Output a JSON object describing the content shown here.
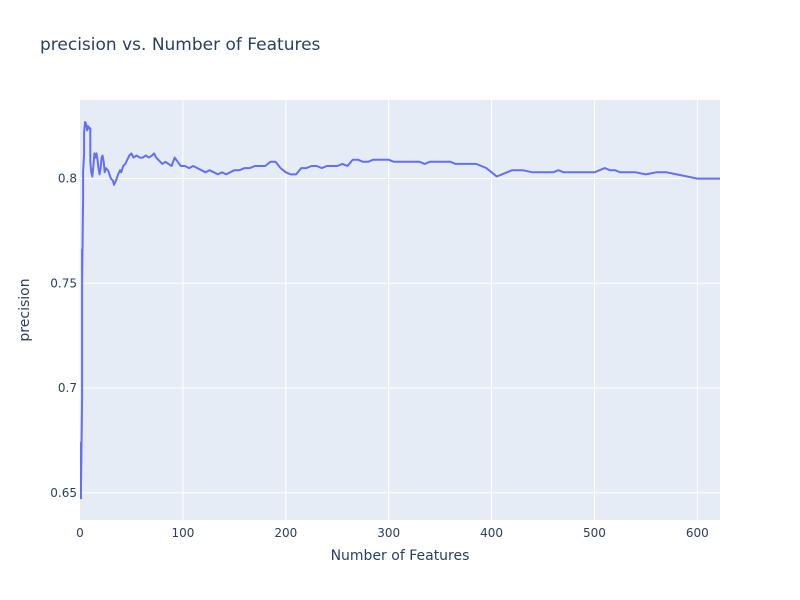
{
  "chart_data": {
    "type": "line",
    "title": "precision vs. Number of Features",
    "xlabel": "Number of Features",
    "ylabel": "precision",
    "xlim": [
      0,
      622
    ],
    "ylim": [
      0.637,
      0.8375
    ],
    "x_ticks": [
      0,
      100,
      200,
      300,
      400,
      500,
      600
    ],
    "x_tick_labels": [
      "0",
      "100",
      "200",
      "300",
      "400",
      "500",
      "600"
    ],
    "y_ticks": [
      0.65,
      0.7,
      0.75,
      0.8
    ],
    "y_tick_labels": [
      "0.65",
      "0.7",
      "0.75",
      "0.8"
    ],
    "grid": true,
    "plot_background": "#e5ecf6",
    "series": [
      {
        "color": "#636efa",
        "points": [
          [
            1,
            0.647
          ],
          [
            1,
            0.674
          ],
          [
            1,
            0.653
          ],
          [
            2,
            0.695
          ],
          [
            2,
            0.735
          ],
          [
            2,
            0.72
          ],
          [
            2,
            0.766
          ],
          [
            2,
            0.75
          ],
          [
            3,
            0.79
          ],
          [
            3,
            0.803
          ],
          [
            4,
            0.812
          ],
          [
            4,
            0.822
          ],
          [
            5,
            0.827
          ],
          [
            6,
            0.826
          ],
          [
            7,
            0.823
          ],
          [
            8,
            0.825
          ],
          [
            9,
            0.824
          ],
          [
            10,
            0.824
          ],
          [
            10,
            0.808
          ],
          [
            11,
            0.803
          ],
          [
            12,
            0.801
          ],
          [
            13,
            0.806
          ],
          [
            14,
            0.812
          ],
          [
            15,
            0.81
          ],
          [
            16,
            0.812
          ],
          [
            17,
            0.809
          ],
          [
            18,
            0.805
          ],
          [
            19,
            0.802
          ],
          [
            20,
            0.805
          ],
          [
            21,
            0.81
          ],
          [
            22,
            0.811
          ],
          [
            23,
            0.808
          ],
          [
            24,
            0.803
          ],
          [
            25,
            0.805
          ],
          [
            27,
            0.804
          ],
          [
            28,
            0.803
          ],
          [
            30,
            0.8
          ],
          [
            32,
            0.799
          ],
          [
            33,
            0.797
          ],
          [
            35,
            0.799
          ],
          [
            37,
            0.802
          ],
          [
            39,
            0.804
          ],
          [
            40,
            0.803
          ],
          [
            42,
            0.806
          ],
          [
            44,
            0.807
          ],
          [
            46,
            0.809
          ],
          [
            48,
            0.811
          ],
          [
            50,
            0.812
          ],
          [
            52,
            0.81
          ],
          [
            55,
            0.811
          ],
          [
            58,
            0.81
          ],
          [
            61,
            0.81
          ],
          [
            64,
            0.811
          ],
          [
            67,
            0.81
          ],
          [
            70,
            0.811
          ],
          [
            72,
            0.812
          ],
          [
            74,
            0.81
          ],
          [
            76,
            0.809
          ],
          [
            78,
            0.808
          ],
          [
            80,
            0.807
          ],
          [
            83,
            0.808
          ],
          [
            86,
            0.807
          ],
          [
            89,
            0.806
          ],
          [
            92,
            0.81
          ],
          [
            95,
            0.808
          ],
          [
            98,
            0.806
          ],
          [
            102,
            0.806
          ],
          [
            106,
            0.805
          ],
          [
            110,
            0.806
          ],
          [
            114,
            0.805
          ],
          [
            118,
            0.804
          ],
          [
            122,
            0.803
          ],
          [
            126,
            0.804
          ],
          [
            130,
            0.803
          ],
          [
            134,
            0.802
          ],
          [
            138,
            0.803
          ],
          [
            142,
            0.802
          ],
          [
            146,
            0.803
          ],
          [
            150,
            0.804
          ],
          [
            155,
            0.804
          ],
          [
            160,
            0.805
          ],
          [
            165,
            0.805
          ],
          [
            170,
            0.806
          ],
          [
            175,
            0.806
          ],
          [
            180,
            0.806
          ],
          [
            185,
            0.808
          ],
          [
            190,
            0.808
          ],
          [
            195,
            0.805
          ],
          [
            200,
            0.803
          ],
          [
            205,
            0.802
          ],
          [
            210,
            0.802
          ],
          [
            215,
            0.805
          ],
          [
            220,
            0.805
          ],
          [
            225,
            0.806
          ],
          [
            230,
            0.806
          ],
          [
            235,
            0.805
          ],
          [
            240,
            0.806
          ],
          [
            245,
            0.806
          ],
          [
            250,
            0.806
          ],
          [
            255,
            0.807
          ],
          [
            260,
            0.806
          ],
          [
            265,
            0.809
          ],
          [
            270,
            0.809
          ],
          [
            275,
            0.808
          ],
          [
            280,
            0.808
          ],
          [
            285,
            0.809
          ],
          [
            290,
            0.809
          ],
          [
            295,
            0.809
          ],
          [
            300,
            0.809
          ],
          [
            305,
            0.808
          ],
          [
            310,
            0.808
          ],
          [
            320,
            0.808
          ],
          [
            330,
            0.808
          ],
          [
            335,
            0.807
          ],
          [
            340,
            0.808
          ],
          [
            350,
            0.808
          ],
          [
            360,
            0.808
          ],
          [
            365,
            0.807
          ],
          [
            370,
            0.807
          ],
          [
            380,
            0.807
          ],
          [
            385,
            0.807
          ],
          [
            390,
            0.806
          ],
          [
            395,
            0.805
          ],
          [
            400,
            0.803
          ],
          [
            405,
            0.801
          ],
          [
            410,
            0.802
          ],
          [
            415,
            0.803
          ],
          [
            420,
            0.804
          ],
          [
            425,
            0.804
          ],
          [
            430,
            0.804
          ],
          [
            440,
            0.803
          ],
          [
            450,
            0.803
          ],
          [
            460,
            0.803
          ],
          [
            465,
            0.804
          ],
          [
            470,
            0.803
          ],
          [
            480,
            0.803
          ],
          [
            490,
            0.803
          ],
          [
            500,
            0.803
          ],
          [
            505,
            0.804
          ],
          [
            510,
            0.805
          ],
          [
            515,
            0.804
          ],
          [
            520,
            0.804
          ],
          [
            525,
            0.803
          ],
          [
            530,
            0.803
          ],
          [
            540,
            0.803
          ],
          [
            550,
            0.802
          ],
          [
            560,
            0.803
          ],
          [
            570,
            0.803
          ],
          [
            580,
            0.802
          ],
          [
            590,
            0.801
          ],
          [
            600,
            0.8
          ],
          [
            610,
            0.8
          ],
          [
            622,
            0.8
          ]
        ]
      }
    ]
  }
}
